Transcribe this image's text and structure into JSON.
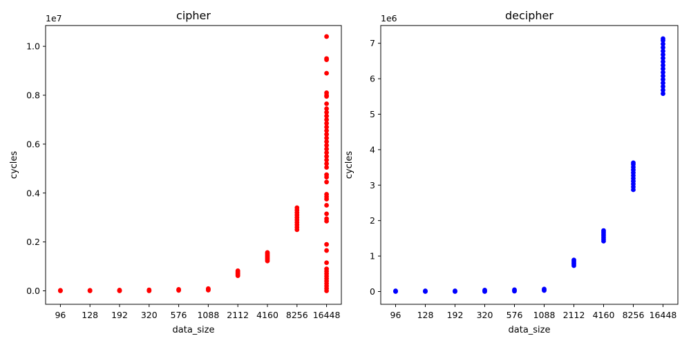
{
  "chart_data": [
    {
      "type": "scatter",
      "title": "cipher",
      "xlabel": "data_size",
      "ylabel": "cycles",
      "offset_text": "1e7",
      "categories": [
        "96",
        "128",
        "192",
        "320",
        "576",
        "1088",
        "2112",
        "4160",
        "8256",
        "16448"
      ],
      "ylim": [
        -0.055,
        1.085
      ],
      "yticks": [
        0.0,
        0.2,
        0.4,
        0.6,
        0.8,
        1.0
      ],
      "ytick_labels": [
        "0.0",
        "0.2",
        "0.4",
        "0.6",
        "0.8",
        "1.0"
      ],
      "marker_color": "#ff0000",
      "series": [
        {
          "points": [
            [
              "96",
              0.0
            ],
            [
              "96",
              0.001
            ],
            [
              "96",
              0.002
            ],
            [
              "128",
              0.0
            ],
            [
              "128",
              0.001
            ],
            [
              "128",
              0.002
            ],
            [
              "192",
              0.0
            ],
            [
              "192",
              0.001
            ],
            [
              "192",
              0.003
            ],
            [
              "320",
              0.0
            ],
            [
              "320",
              0.002
            ],
            [
              "320",
              0.004
            ],
            [
              "576",
              0.002
            ],
            [
              "576",
              0.004
            ],
            [
              "576",
              0.006
            ],
            [
              "1088",
              0.003
            ],
            [
              "1088",
              0.005
            ],
            [
              "1088",
              0.007
            ],
            [
              "1088",
              0.009
            ],
            [
              "2112",
              0.062
            ],
            [
              "2112",
              0.066
            ],
            [
              "2112",
              0.07
            ],
            [
              "2112",
              0.074
            ],
            [
              "2112",
              0.078
            ],
            [
              "2112",
              0.082
            ],
            [
              "4160",
              0.122
            ],
            [
              "4160",
              0.127
            ],
            [
              "4160",
              0.132
            ],
            [
              "4160",
              0.137
            ],
            [
              "4160",
              0.142
            ],
            [
              "4160",
              0.147
            ],
            [
              "4160",
              0.152
            ],
            [
              "4160",
              0.157
            ],
            [
              "8256",
              0.25
            ],
            [
              "8256",
              0.26
            ],
            [
              "8256",
              0.27
            ],
            [
              "8256",
              0.28
            ],
            [
              "8256",
              0.29
            ],
            [
              "8256",
              0.3
            ],
            [
              "8256",
              0.31
            ],
            [
              "8256",
              0.32
            ],
            [
              "8256",
              0.33
            ],
            [
              "8256",
              0.34
            ],
            [
              "16448",
              0.0
            ],
            [
              "16448",
              0.01
            ],
            [
              "16448",
              0.02
            ],
            [
              "16448",
              0.03
            ],
            [
              "16448",
              0.04
            ],
            [
              "16448",
              0.05
            ],
            [
              "16448",
              0.06
            ],
            [
              "16448",
              0.07
            ],
            [
              "16448",
              0.08
            ],
            [
              "16448",
              0.09
            ],
            [
              "16448",
              0.115
            ],
            [
              "16448",
              0.165
            ],
            [
              "16448",
              0.19
            ],
            [
              "16448",
              0.285
            ],
            [
              "16448",
              0.295
            ],
            [
              "16448",
              0.315
            ],
            [
              "16448",
              0.35
            ],
            [
              "16448",
              0.375
            ],
            [
              "16448",
              0.385
            ],
            [
              "16448",
              0.395
            ],
            [
              "16448",
              0.445
            ],
            [
              "16448",
              0.465
            ],
            [
              "16448",
              0.475
            ],
            [
              "16448",
              0.505
            ],
            [
              "16448",
              0.52
            ],
            [
              "16448",
              0.535
            ],
            [
              "16448",
              0.55
            ],
            [
              "16448",
              0.565
            ],
            [
              "16448",
              0.58
            ],
            [
              "16448",
              0.595
            ],
            [
              "16448",
              0.61
            ],
            [
              "16448",
              0.625
            ],
            [
              "16448",
              0.64
            ],
            [
              "16448",
              0.655
            ],
            [
              "16448",
              0.67
            ],
            [
              "16448",
              0.685
            ],
            [
              "16448",
              0.7
            ],
            [
              "16448",
              0.715
            ],
            [
              "16448",
              0.73
            ],
            [
              "16448",
              0.745
            ],
            [
              "16448",
              0.765
            ],
            [
              "16448",
              0.795
            ],
            [
              "16448",
              0.8
            ],
            [
              "16448",
              0.81
            ],
            [
              "16448",
              0.89
            ],
            [
              "16448",
              0.945
            ],
            [
              "16448",
              0.95
            ],
            [
              "16448",
              1.04
            ]
          ]
        }
      ]
    },
    {
      "type": "scatter",
      "title": "decipher",
      "xlabel": "data_size",
      "ylabel": "cycles",
      "offset_text": "1e6",
      "categories": [
        "96",
        "128",
        "192",
        "320",
        "576",
        "1088",
        "2112",
        "4160",
        "8256",
        "16448"
      ],
      "ylim": [
        -0.36,
        7.5
      ],
      "yticks": [
        0,
        1,
        2,
        3,
        4,
        5,
        6,
        7
      ],
      "ytick_labels": [
        "0",
        "1",
        "2",
        "3",
        "4",
        "5",
        "6",
        "7"
      ],
      "marker_color": "#0000ff",
      "series": [
        {
          "points": [
            [
              "96",
              0.0
            ],
            [
              "96",
              0.01
            ],
            [
              "96",
              0.02
            ],
            [
              "128",
              0.0
            ],
            [
              "128",
              0.01
            ],
            [
              "128",
              0.02
            ],
            [
              "192",
              0.0
            ],
            [
              "192",
              0.01
            ],
            [
              "192",
              0.02
            ],
            [
              "320",
              0.0
            ],
            [
              "320",
              0.02
            ],
            [
              "320",
              0.04
            ],
            [
              "576",
              0.01
            ],
            [
              "576",
              0.03
            ],
            [
              "576",
              0.05
            ],
            [
              "1088",
              0.03
            ],
            [
              "1088",
              0.05
            ],
            [
              "1088",
              0.07
            ],
            [
              "2112",
              0.73
            ],
            [
              "2112",
              0.77
            ],
            [
              "2112",
              0.81
            ],
            [
              "2112",
              0.85
            ],
            [
              "2112",
              0.89
            ],
            [
              "4160",
              1.42
            ],
            [
              "4160",
              1.47
            ],
            [
              "4160",
              1.52
            ],
            [
              "4160",
              1.57
            ],
            [
              "4160",
              1.62
            ],
            [
              "4160",
              1.67
            ],
            [
              "4160",
              1.72
            ],
            [
              "8256",
              2.87
            ],
            [
              "8256",
              2.95
            ],
            [
              "8256",
              3.03
            ],
            [
              "8256",
              3.11
            ],
            [
              "8256",
              3.19
            ],
            [
              "8256",
              3.27
            ],
            [
              "8256",
              3.35
            ],
            [
              "8256",
              3.43
            ],
            [
              "8256",
              3.51
            ],
            [
              "8256",
              3.59
            ],
            [
              "8256",
              3.63
            ],
            [
              "16448",
              5.58
            ],
            [
              "16448",
              5.68
            ],
            [
              "16448",
              5.78
            ],
            [
              "16448",
              5.88
            ],
            [
              "16448",
              5.98
            ],
            [
              "16448",
              6.08
            ],
            [
              "16448",
              6.18
            ],
            [
              "16448",
              6.28
            ],
            [
              "16448",
              6.38
            ],
            [
              "16448",
              6.48
            ],
            [
              "16448",
              6.58
            ],
            [
              "16448",
              6.68
            ],
            [
              "16448",
              6.78
            ],
            [
              "16448",
              6.88
            ],
            [
              "16448",
              6.98
            ],
            [
              "16448",
              7.08
            ],
            [
              "16448",
              7.13
            ]
          ]
        }
      ]
    }
  ]
}
